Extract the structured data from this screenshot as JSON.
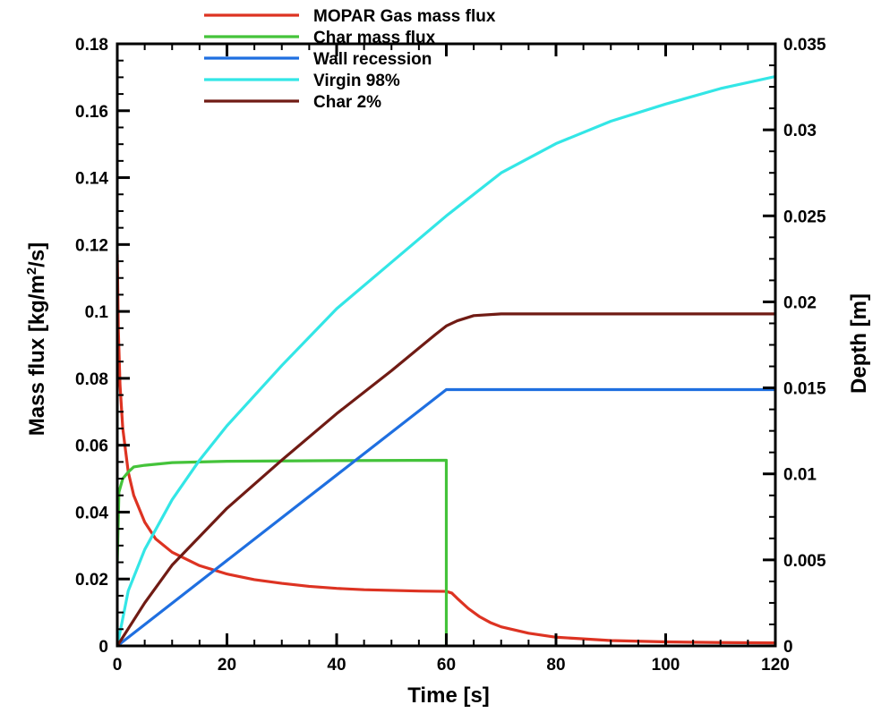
{
  "chart_data": {
    "type": "line",
    "xlabel": "Time [s]",
    "ylabel_left_parts": [
      "Mass flux [kg/m",
      "2",
      "/s]"
    ],
    "ylabel_right": "Depth [m]",
    "xlim": [
      0,
      120
    ],
    "ylim_left": [
      0,
      0.18
    ],
    "ylim_right": [
      0,
      0.035
    ],
    "x_ticks": [
      0,
      20,
      40,
      60,
      80,
      100,
      120
    ],
    "x_tick_labels": [
      "0",
      "20",
      "40",
      "60",
      "80",
      "100",
      "120"
    ],
    "y_left_ticks": [
      0,
      0.02,
      0.04,
      0.06,
      0.08,
      0.1,
      0.12,
      0.14,
      0.16,
      0.18
    ],
    "y_left_tick_labels": [
      "0",
      "0.02",
      "0.04",
      "0.06",
      "0.08",
      "0.1",
      "0.12",
      "0.14",
      "0.16",
      "0.18"
    ],
    "y_right_ticks": [
      0,
      0.005,
      0.01,
      0.015,
      0.02,
      0.025,
      0.03,
      0.035
    ],
    "y_right_tick_labels": [
      "0",
      "0.005",
      "0.01",
      "0.015",
      "0.02",
      "0.025",
      "0.03",
      "0.035"
    ],
    "grid": false,
    "legend_position": "top-left",
    "series": [
      {
        "name": "MOPAR Gas mass flux",
        "color": "#dd3322",
        "axis": "left",
        "points": [
          [
            0,
            0.117
          ],
          [
            0.2,
            0.094
          ],
          [
            0.5,
            0.078
          ],
          [
            1,
            0.065
          ],
          [
            2,
            0.052
          ],
          [
            3,
            0.045
          ],
          [
            5,
            0.037
          ],
          [
            7,
            0.032
          ],
          [
            10,
            0.028
          ],
          [
            15,
            0.024
          ],
          [
            20,
            0.0215
          ],
          [
            25,
            0.0198
          ],
          [
            30,
            0.0187
          ],
          [
            35,
            0.0178
          ],
          [
            40,
            0.0172
          ],
          [
            45,
            0.0168
          ],
          [
            50,
            0.0166
          ],
          [
            55,
            0.0164
          ],
          [
            60,
            0.0163
          ],
          [
            61,
            0.0158
          ],
          [
            62,
            0.0142
          ],
          [
            64,
            0.0112
          ],
          [
            66,
            0.0088
          ],
          [
            68,
            0.007
          ],
          [
            70,
            0.0057
          ],
          [
            75,
            0.0038
          ],
          [
            80,
            0.0026
          ],
          [
            90,
            0.0016
          ],
          [
            100,
            0.0012
          ],
          [
            110,
            0.001
          ],
          [
            120,
            0.0009
          ]
        ]
      },
      {
        "name": "Char mass flux",
        "color": "#44c33a",
        "axis": "left",
        "points": [
          [
            0,
            0.025
          ],
          [
            0.3,
            0.046
          ],
          [
            1,
            0.05
          ],
          [
            2,
            0.052
          ],
          [
            3,
            0.0535
          ],
          [
            5,
            0.054
          ],
          [
            10,
            0.0548
          ],
          [
            20,
            0.0552
          ],
          [
            40,
            0.0554
          ],
          [
            59.8,
            0.0555
          ],
          [
            60,
            0.0555
          ],
          [
            60,
            0
          ]
        ]
      },
      {
        "name": "Wall recession",
        "color": "#1f6fe0",
        "axis": "right",
        "points": [
          [
            0,
            0
          ],
          [
            60,
            0.0149
          ],
          [
            120,
            0.0149
          ]
        ]
      },
      {
        "name": "Virgin 98%",
        "color": "#33e6e6",
        "axis": "right",
        "points": [
          [
            0,
            0
          ],
          [
            2,
            0.0032
          ],
          [
            5,
            0.0056
          ],
          [
            10,
            0.0085
          ],
          [
            15,
            0.0108
          ],
          [
            20,
            0.0128
          ],
          [
            30,
            0.0163
          ],
          [
            40,
            0.0196
          ],
          [
            50,
            0.0223
          ],
          [
            60,
            0.025
          ],
          [
            70,
            0.0275
          ],
          [
            80,
            0.0292
          ],
          [
            90,
            0.0305
          ],
          [
            100,
            0.0315
          ],
          [
            110,
            0.0324
          ],
          [
            120,
            0.0331
          ]
        ]
      },
      {
        "name": "Char 2%",
        "color": "#701b14",
        "axis": "right",
        "points": [
          [
            0,
            0
          ],
          [
            5,
            0.0025
          ],
          [
            10,
            0.0047
          ],
          [
            20,
            0.008
          ],
          [
            30,
            0.0108
          ],
          [
            40,
            0.0135
          ],
          [
            50,
            0.016
          ],
          [
            58,
            0.0181
          ],
          [
            60,
            0.0186
          ],
          [
            62,
            0.0189
          ],
          [
            65,
            0.0192
          ],
          [
            70,
            0.0193
          ],
          [
            80,
            0.0193
          ],
          [
            100,
            0.0193
          ],
          [
            120,
            0.0193
          ]
        ]
      }
    ]
  }
}
